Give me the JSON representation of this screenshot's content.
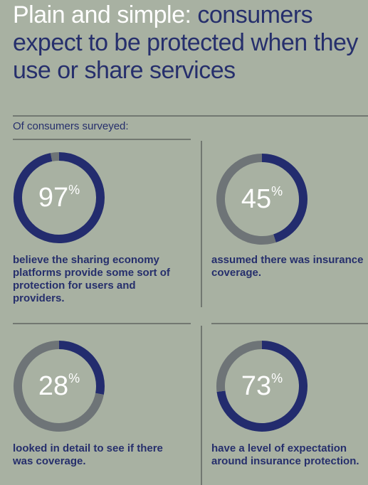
{
  "title_lead": "Plain and simple:",
  "title_rest": "consumers expect to be protected when they use or share services",
  "subtitle": "Of consumers surveyed:",
  "chart_data": [
    {
      "type": "donut",
      "categories": [
        null,
        null
      ],
      "values": [
        97,
        3
      ],
      "colors": [
        "#232c6e",
        "#6e7477"
      ],
      "unit": "%",
      "caption": "believe the sharing economy platforms provide some sort of protection for users and providers."
    },
    {
      "type": "donut",
      "categories": [
        null,
        null
      ],
      "values": [
        45,
        55
      ],
      "colors": [
        "#232c6e",
        "#6e7477"
      ],
      "unit": "%",
      "caption": "assumed there was insurance coverage."
    },
    {
      "type": "donut",
      "categories": [
        null,
        null
      ],
      "values": [
        28,
        72
      ],
      "colors": [
        "#232c6e",
        "#6e7477"
      ],
      "unit": "%",
      "caption": "looked in detail to see if there was coverage."
    },
    {
      "type": "donut",
      "categories": [
        null,
        null
      ],
      "values": [
        73,
        27
      ],
      "colors": [
        "#232c6e",
        "#6e7477"
      ],
      "unit": "%",
      "caption": "have a level of expectation around insurance protection."
    }
  ]
}
